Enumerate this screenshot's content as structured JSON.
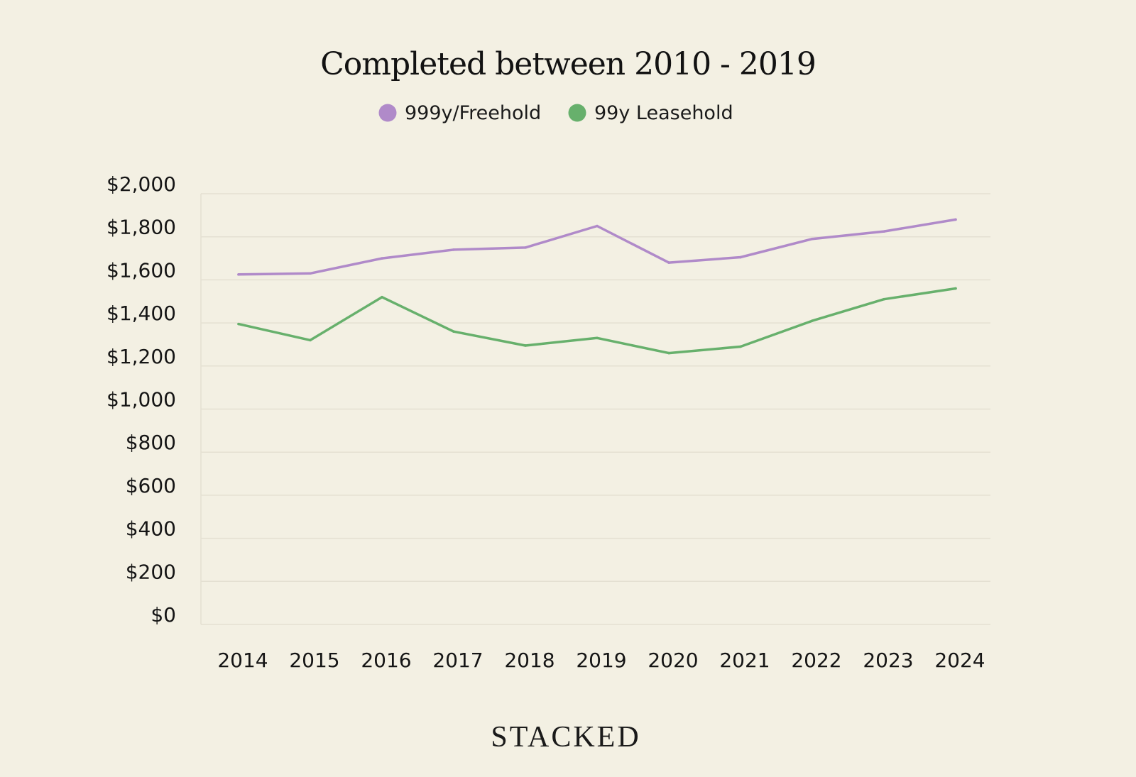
{
  "chart_data": {
    "type": "line",
    "title": "Completed between 2010 - 2019",
    "xlabel": "",
    "ylabel": "",
    "categories": [
      "2014",
      "2015",
      "2016",
      "2017",
      "2018",
      "2019",
      "2020",
      "2021",
      "2022",
      "2023",
      "2024"
    ],
    "y_ticks": [
      "$0",
      "$200",
      "$400",
      "$600",
      "$800",
      "$1,000",
      "$1,200",
      "$1,400",
      "$1,600",
      "$1,800",
      "$2,000"
    ],
    "ylim": [
      0,
      2000
    ],
    "grid": true,
    "legend_position": "top-center",
    "series": [
      {
        "name": "999y/Freehold",
        "color": "#b08ac9",
        "values": [
          1625,
          1630,
          1700,
          1740,
          1750,
          1850,
          1680,
          1705,
          1790,
          1825,
          1880
        ]
      },
      {
        "name": "99y Leasehold",
        "color": "#67b06c",
        "values": [
          1395,
          1320,
          1520,
          1360,
          1295,
          1330,
          1260,
          1290,
          1410,
          1510,
          1560
        ]
      }
    ]
  },
  "brand": "STACKED",
  "colors": {
    "background": "#f3f0e3",
    "gridline": "#e4e0d2"
  }
}
